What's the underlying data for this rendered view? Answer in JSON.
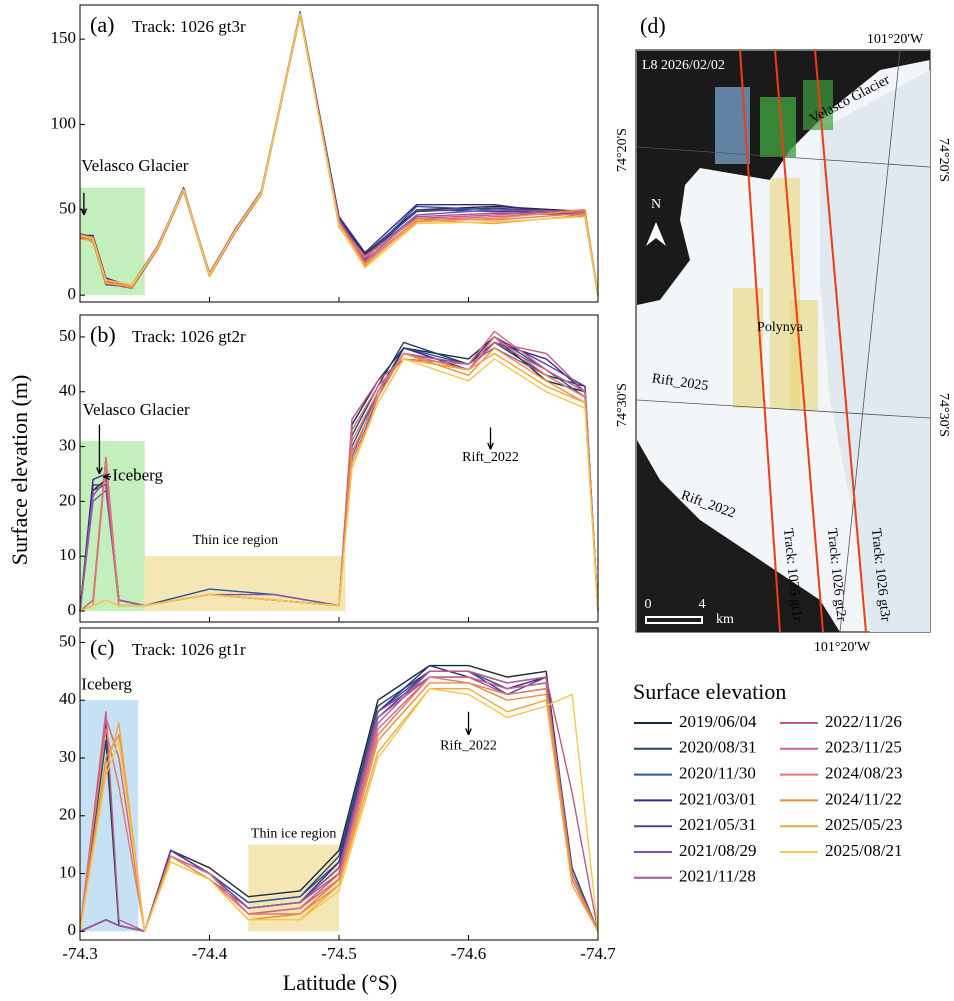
{
  "chart_data": [
    {
      "type": "line",
      "panel_label": "(a)",
      "title": "Track: 1026 gt3r",
      "xlim": [
        -74.3,
        -74.7
      ],
      "xticks": [
        -74.3,
        -74.4,
        -74.5,
        -74.6,
        -74.7
      ],
      "ylim": [
        -4,
        170
      ],
      "yticks": [
        0,
        50,
        100,
        150
      ],
      "x": [
        -74.3,
        -74.31,
        -74.32,
        -74.34,
        -74.36,
        -74.38,
        -74.4,
        -74.42,
        -74.44,
        -74.47,
        -74.5,
        -74.52,
        -74.56,
        -74.62,
        -74.69,
        -74.7
      ],
      "regions": [
        {
          "x": [
            -74.3,
            -74.35
          ],
          "y": [
            0,
            63
          ],
          "color": "#b8ecb0"
        }
      ],
      "annotations": [
        "Velasco Glacier"
      ],
      "series": [
        {
          "name": "2019/06/04",
          "color": "#1b2a3a",
          "values": [
            35,
            33,
            8,
            5,
            28,
            62,
            12,
            38,
            60,
            165,
            46,
            24,
            50,
            52,
            49,
            0
          ]
        },
        {
          "name": "2020/08/31",
          "color": "#1f4660",
          "values": [
            34,
            32,
            7,
            4,
            27,
            61,
            11,
            37,
            59,
            164,
            45,
            23,
            49,
            51,
            48,
            0
          ]
        },
        {
          "name": "2020/11/30",
          "color": "#2c5597",
          "values": [
            36,
            34,
            9,
            6,
            29,
            62,
            13,
            38,
            61,
            165,
            44,
            22,
            52,
            50,
            47,
            1
          ]
        },
        {
          "name": "2021/03/01",
          "color": "#35288a",
          "values": [
            35,
            35,
            10,
            5,
            28,
            63,
            12,
            39,
            60,
            166,
            46,
            25,
            53,
            53,
            46,
            0
          ]
        },
        {
          "name": "2021/05/31",
          "color": "#5b3aa0",
          "values": [
            33,
            33,
            8,
            4,
            28,
            62,
            12,
            38,
            60,
            165,
            45,
            21,
            50,
            49,
            48,
            0
          ]
        },
        {
          "name": "2021/08/29",
          "color": "#8052a8",
          "values": [
            35,
            32,
            6,
            5,
            27,
            61,
            11,
            37,
            59,
            164,
            43,
            22,
            47,
            50,
            49,
            1
          ]
        },
        {
          "name": "2021/11/28",
          "color": "#a0569c",
          "values": [
            34,
            34,
            8,
            6,
            28,
            62,
            12,
            38,
            60,
            165,
            44,
            20,
            46,
            48,
            47,
            0
          ]
        },
        {
          "name": "2022/11/26",
          "color": "#bc5a86",
          "values": [
            36,
            33,
            9,
            5,
            29,
            62,
            13,
            39,
            61,
            165,
            42,
            23,
            45,
            47,
            50,
            0
          ]
        },
        {
          "name": "2023/11/25",
          "color": "#d2687e",
          "values": [
            35,
            31,
            7,
            5,
            28,
            61,
            12,
            38,
            60,
            164,
            43,
            19,
            44,
            46,
            49,
            1
          ]
        },
        {
          "name": "2024/08/23",
          "color": "#e2786a",
          "values": [
            34,
            33,
            8,
            4,
            28,
            62,
            12,
            38,
            60,
            165,
            41,
            22,
            45,
            44,
            48,
            0
          ]
        },
        {
          "name": "2024/11/22",
          "color": "#ec8c3c",
          "values": [
            35,
            34,
            8,
            5,
            27,
            62,
            12,
            37,
            60,
            165,
            40,
            18,
            43,
            45,
            50,
            0
          ]
        },
        {
          "name": "2025/05/23",
          "color": "#f2a63a",
          "values": [
            33,
            32,
            7,
            5,
            28,
            61,
            11,
            38,
            59,
            164,
            42,
            17,
            44,
            42,
            47,
            0
          ]
        },
        {
          "name": "2025/08/21",
          "color": "#f6c64e",
          "values": [
            35,
            33,
            9,
            6,
            28,
            62,
            12,
            38,
            60,
            165,
            41,
            16,
            42,
            43,
            46,
            1
          ]
        }
      ]
    },
    {
      "type": "line",
      "panel_label": "(b)",
      "title": "Track: 1026 gt2r",
      "xlim": [
        -74.3,
        -74.7
      ],
      "xticks": [
        -74.3,
        -74.4,
        -74.5,
        -74.6,
        -74.7
      ],
      "ylim": [
        -2,
        54
      ],
      "yticks": [
        0,
        10,
        20,
        30,
        40,
        50
      ],
      "y_label": "Surface elevation (m)",
      "x": [
        -74.3,
        -74.31,
        -74.32,
        -74.33,
        -74.35,
        -74.4,
        -74.45,
        -74.5,
        -74.51,
        -74.53,
        -74.55,
        -74.6,
        -74.62,
        -74.66,
        -74.69,
        -74.7
      ],
      "regions": [
        {
          "x": [
            -74.3,
            -74.35
          ],
          "y": [
            0,
            31
          ],
          "color": "#b8ecb0"
        },
        {
          "x": [
            -74.35,
            -74.505
          ],
          "y": [
            0,
            10
          ],
          "color": "#f2e2a8"
        }
      ],
      "annotations": [
        "Velasco Glacier",
        "Iceberg",
        "Thin ice region",
        "Rift_2022"
      ],
      "series": [
        {
          "name": "2019/06/04",
          "color": "#1b2a3a",
          "values": [
            0,
            22,
            24,
            2,
            1,
            3,
            2,
            1,
            34,
            42,
            48,
            46,
            50,
            42,
            40,
            0
          ]
        },
        {
          "name": "2020/08/31",
          "color": "#1f4660",
          "values": [
            0,
            23,
            23,
            2,
            1,
            3,
            2,
            1,
            32,
            41,
            49,
            45,
            49,
            43,
            41,
            0
          ]
        },
        {
          "name": "2020/11/30",
          "color": "#2c5597",
          "values": [
            0,
            21,
            24,
            1,
            1,
            4,
            3,
            1,
            30,
            40,
            48,
            45,
            50,
            44,
            39,
            0
          ]
        },
        {
          "name": "2021/03/01",
          "color": "#35288a",
          "values": [
            0,
            24,
            25,
            2,
            1,
            3,
            2,
            1,
            29,
            39,
            48,
            44,
            49,
            46,
            40,
            0
          ]
        },
        {
          "name": "2021/05/31",
          "color": "#5b3aa0",
          "values": [
            0,
            22,
            23,
            2,
            1,
            3,
            2,
            1,
            28,
            40,
            47,
            45,
            50,
            45,
            41,
            0
          ]
        },
        {
          "name": "2021/08/29",
          "color": "#8052a8",
          "values": [
            0,
            20,
            22,
            2,
            1,
            3,
            3,
            1,
            27,
            39,
            47,
            44,
            49,
            44,
            40,
            0
          ]
        },
        {
          "name": "2021/11/28",
          "color": "#a0569c",
          "values": [
            0,
            21,
            24,
            2,
            1,
            3,
            2,
            1,
            28,
            40,
            47,
            45,
            48,
            43,
            39,
            0
          ]
        },
        {
          "name": "2022/11/26",
          "color": "#bc5a86",
          "values": [
            0,
            2,
            28,
            1,
            1,
            3,
            2,
            1,
            35,
            42,
            46,
            44,
            49,
            47,
            40,
            0
          ]
        },
        {
          "name": "2023/11/25",
          "color": "#d2687e",
          "values": [
            0,
            2,
            28,
            1,
            1,
            3,
            2,
            1,
            33,
            41,
            46,
            45,
            51,
            44,
            40,
            0
          ]
        },
        {
          "name": "2024/08/23",
          "color": "#e2786a",
          "values": [
            0,
            1,
            27,
            1,
            1,
            3,
            2,
            1,
            31,
            40,
            47,
            44,
            50,
            43,
            39,
            0
          ]
        },
        {
          "name": "2024/11/22",
          "color": "#ec8c3c",
          "values": [
            0,
            1,
            2,
            1,
            1,
            3,
            2,
            1,
            29,
            39,
            47,
            43,
            48,
            42,
            38,
            0
          ]
        },
        {
          "name": "2025/05/23",
          "color": "#f2a63a",
          "values": [
            0,
            1,
            2,
            1,
            1,
            3,
            2,
            1,
            27,
            38,
            46,
            44,
            47,
            41,
            38,
            0
          ]
        },
        {
          "name": "2025/08/21",
          "color": "#f6c64e",
          "values": [
            0,
            1,
            2,
            1,
            1,
            3,
            2,
            1,
            26,
            38,
            46,
            42,
            46,
            40,
            37,
            0
          ]
        }
      ]
    },
    {
      "type": "line",
      "panel_label": "(c)",
      "title": "Track: 1026 gt1r",
      "xlim": [
        -74.3,
        -74.7
      ],
      "xticks": [
        -74.3,
        -74.4,
        -74.5,
        -74.6,
        -74.7
      ],
      "ylim": [
        -1.5,
        52.5
      ],
      "yticks": [
        0,
        10,
        20,
        30,
        40,
        50
      ],
      "x_label": "Latitude (°S)",
      "x": [
        -74.3,
        -74.32,
        -74.33,
        -74.35,
        -74.37,
        -74.4,
        -74.43,
        -74.47,
        -74.5,
        -74.53,
        -74.57,
        -74.6,
        -74.63,
        -74.66,
        -74.68,
        -74.7
      ],
      "regions": [
        {
          "x": [
            -74.3,
            -74.345
          ],
          "y": [
            0,
            40
          ],
          "color": "#bcdcf2"
        },
        {
          "x": [
            -74.43,
            -74.5
          ],
          "y": [
            0,
            15
          ],
          "color": "#f2e2a8"
        }
      ],
      "annotations": [
        "Iceberg",
        "Thin ice region",
        "Rift_2022"
      ],
      "series": [
        {
          "name": "2019/06/04",
          "color": "#1b2a3a",
          "values": [
            0,
            36,
            1,
            0,
            14,
            11,
            6,
            7,
            14,
            40,
            46,
            46,
            44,
            45,
            10,
            0
          ]
        },
        {
          "name": "2020/08/31",
          "color": "#1f4660",
          "values": [
            0,
            33,
            1,
            0,
            14,
            10,
            5,
            6,
            13,
            39,
            45,
            45,
            43,
            44,
            11,
            0
          ]
        },
        {
          "name": "2020/11/30",
          "color": "#2c5597",
          "values": [
            0,
            2,
            1,
            0,
            13,
            10,
            5,
            6,
            12,
            38,
            45,
            45,
            42,
            43,
            10,
            0
          ]
        },
        {
          "name": "2021/03/01",
          "color": "#35288a",
          "values": [
            0,
            2,
            1,
            0,
            14,
            10,
            4,
            5,
            12,
            38,
            46,
            44,
            42,
            44,
            9,
            0
          ]
        },
        {
          "name": "2021/05/31",
          "color": "#5b3aa0",
          "values": [
            0,
            2,
            1,
            0,
            14,
            10,
            4,
            5,
            11,
            37,
            45,
            45,
            41,
            44,
            10,
            0
          ]
        },
        {
          "name": "2021/08/29",
          "color": "#8052a8",
          "values": [
            0,
            2,
            1,
            0,
            13,
            10,
            4,
            5,
            11,
            38,
            44,
            44,
            42,
            43,
            9,
            0
          ]
        },
        {
          "name": "2021/11/28",
          "color": "#a0569c",
          "values": [
            0,
            2,
            1,
            0,
            13,
            9,
            4,
            5,
            10,
            37,
            44,
            44,
            41,
            42,
            9,
            0
          ]
        },
        {
          "name": "2022/11/26",
          "color": "#bc5a86",
          "values": [
            0,
            38,
            2,
            0,
            13,
            10,
            3,
            4,
            10,
            36,
            45,
            45,
            43,
            44,
            24,
            0
          ]
        },
        {
          "name": "2023/11/25",
          "color": "#d2687e",
          "values": [
            0,
            37,
            30,
            0,
            13,
            10,
            3,
            4,
            9,
            35,
            44,
            44,
            42,
            43,
            10,
            0
          ]
        },
        {
          "name": "2024/08/23",
          "color": "#e2786a",
          "values": [
            0,
            35,
            25,
            0,
            13,
            9,
            3,
            3,
            9,
            34,
            44,
            43,
            41,
            42,
            9,
            0
          ]
        },
        {
          "name": "2024/11/22",
          "color": "#ec8c3c",
          "values": [
            0,
            30,
            34,
            0,
            13,
            9,
            2,
            3,
            8,
            33,
            43,
            43,
            40,
            41,
            9,
            0
          ]
        },
        {
          "name": "2025/05/23",
          "color": "#f2a63a",
          "values": [
            0,
            28,
            36,
            0,
            12,
            9,
            2,
            2,
            8,
            31,
            42,
            42,
            38,
            40,
            8,
            0
          ]
        },
        {
          "name": "2025/08/21",
          "color": "#f6c64e",
          "values": [
            0,
            27,
            33,
            0,
            12,
            9,
            2,
            2,
            7,
            30,
            42,
            41,
            37,
            39,
            41,
            0
          ]
        }
      ]
    }
  ],
  "legend_title": "Surface elevation",
  "map": {
    "panel_label": "(d)",
    "image_label": "L8 2026/02/02",
    "lon_top": "101°20'W",
    "lon_bottom": "101°20'W",
    "lat_upper_left": "74°20'S",
    "lat_upper_right": "74°20'S",
    "lat_lower_left": "74°30'S",
    "lat_lower_right": "74°30'S",
    "glacier": "Velasco Glacier",
    "polynya": "Polynya",
    "rift_2025": "Rift_2025",
    "rift_2022": "Rift_2022",
    "tracks": [
      "Track: 1026 gt1r",
      "Track: 1026 gt2r",
      "Track: 1026 gt3r"
    ],
    "north": "N",
    "scale_start": "0",
    "scale_end": "4",
    "scale_unit": "km"
  }
}
